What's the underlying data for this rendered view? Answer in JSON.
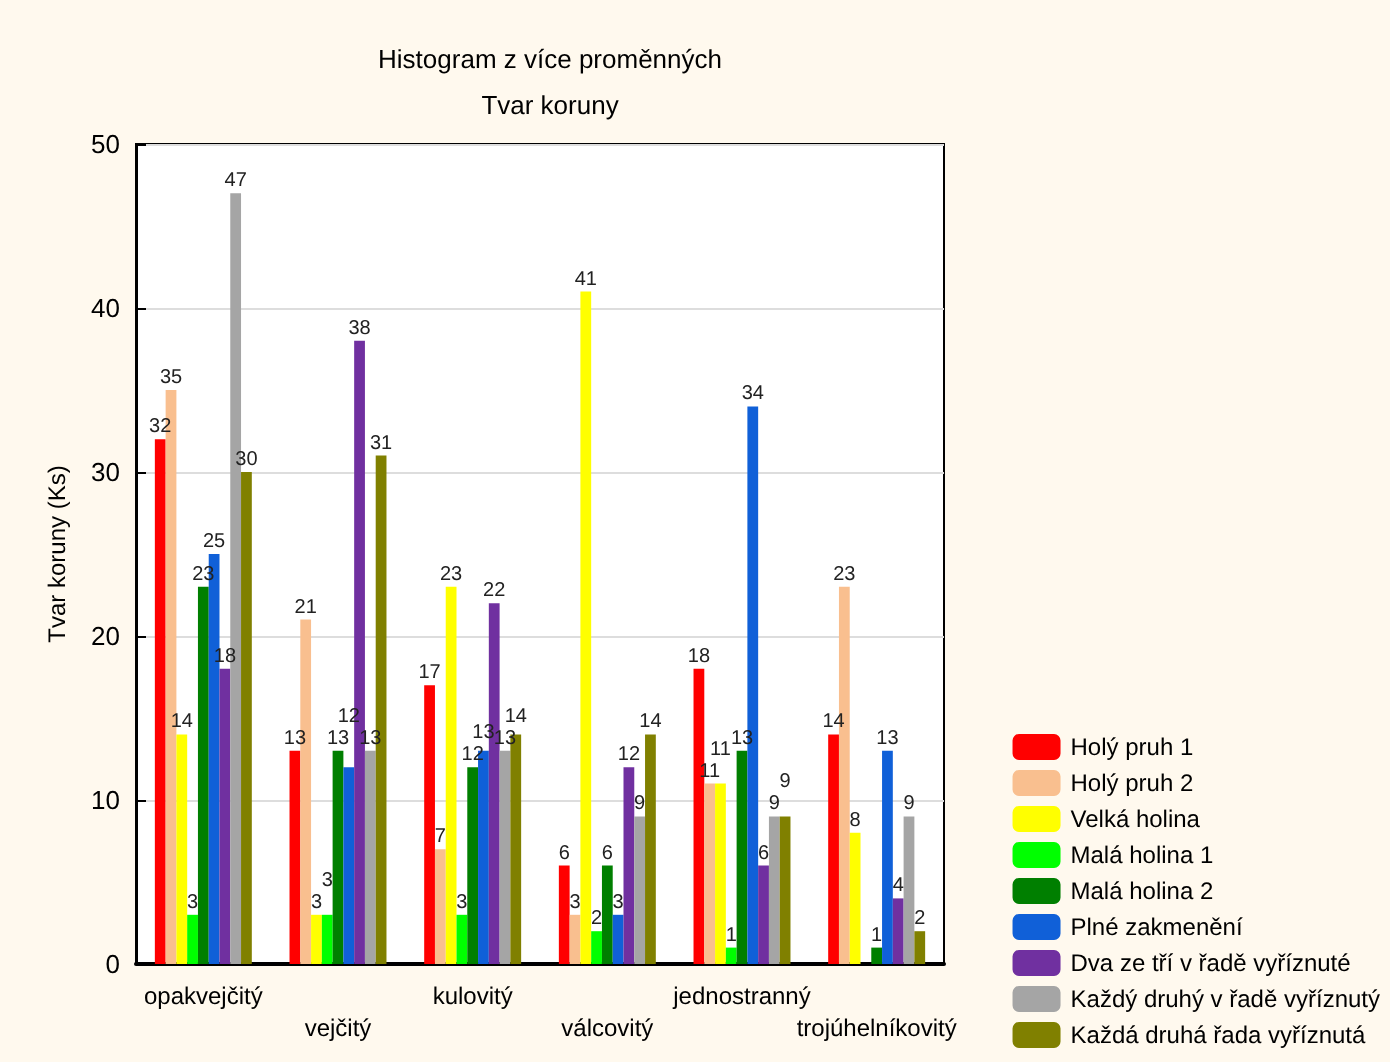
{
  "chart_data": {
    "type": "bar",
    "title": "Histogram z více proměnných",
    "subtitle": "Tvar koruny",
    "ylabel": "Tvar koruny (Ks)",
    "categories": [
      "opakvejčitý",
      "vejčitý",
      "kulovitý",
      "válcovitý",
      "jednostranný",
      "trojúhelníkovitý"
    ],
    "series": [
      {
        "name": "Holý pruh 1",
        "color": "#ff0000",
        "values": [
          32,
          13,
          17,
          6,
          18,
          14
        ]
      },
      {
        "name": "Holý pruh 2",
        "color": "#f9bf8f",
        "values": [
          35,
          21,
          7,
          3,
          11,
          23
        ]
      },
      {
        "name": "Velká holina",
        "color": "#ffff00",
        "values": [
          14,
          3,
          23,
          41,
          11,
          8
        ]
      },
      {
        "name": "Malá holina 1",
        "color": "#00ff00",
        "values": [
          3,
          3,
          3,
          2,
          1,
          null
        ]
      },
      {
        "name": "Malá holina 2",
        "color": "#007f00",
        "values": [
          23,
          13,
          12,
          6,
          13,
          1
        ]
      },
      {
        "name": "Plné zakmenění",
        "color": "#1060d8",
        "values": [
          25,
          12,
          13,
          3,
          34,
          13
        ]
      },
      {
        "name": "Dva ze tří v řadě vyříznuté",
        "color": "#7030a0",
        "values": [
          18,
          38,
          22,
          12,
          6,
          4
        ]
      },
      {
        "name": "Každý druhý v řadě vyříznutý",
        "color": "#a5a5a5",
        "values": [
          47,
          13,
          13,
          9,
          9,
          9
        ]
      },
      {
        "name": "Každá druhá řada vyříznutá",
        "color": "#808000",
        "values": [
          30,
          31,
          14,
          14,
          9,
          2
        ]
      }
    ],
    "ylim": [
      0,
      50
    ],
    "yticks": [
      0,
      10,
      20,
      30,
      40,
      50
    ],
    "grid": "y",
    "legend": "bottom right",
    "data_labels": true
  }
}
